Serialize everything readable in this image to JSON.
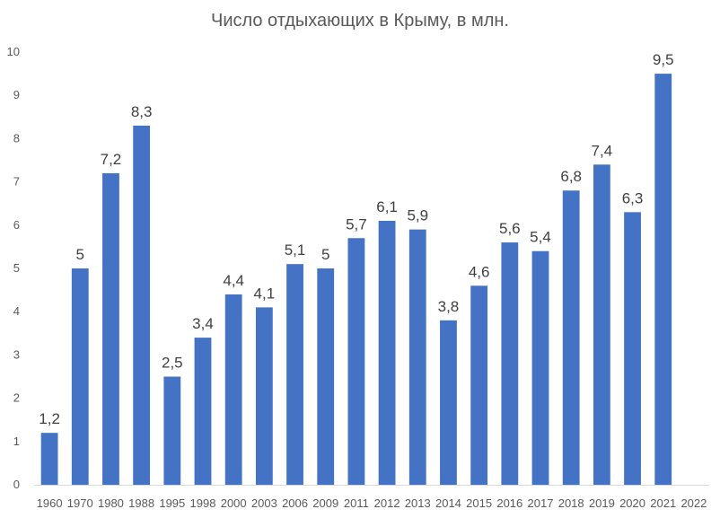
{
  "chart_data": {
    "type": "bar",
    "title": "Число отдыхающих в Крыму, в млн.",
    "xlabel": "",
    "ylabel": "",
    "ylim": [
      0,
      10
    ],
    "yticks": [
      "0",
      "1",
      "2",
      "3",
      "4",
      "5",
      "6",
      "7",
      "8",
      "9",
      "10"
    ],
    "categories": [
      "1960",
      "1970",
      "1980",
      "1988",
      "1995",
      "1998",
      "2000",
      "2003",
      "2006",
      "2009",
      "2011",
      "2012",
      "2013",
      "2014",
      "2015",
      "2016",
      "2017",
      "2018",
      "2019",
      "2020",
      "2021",
      "2022"
    ],
    "values": [
      1.2,
      5,
      7.2,
      8.3,
      2.5,
      3.4,
      4.4,
      4.1,
      5.1,
      5,
      5.7,
      6.1,
      5.9,
      3.8,
      4.6,
      5.6,
      5.4,
      6.8,
      7.4,
      6.3,
      9.5,
      null
    ],
    "value_labels": [
      "1,2",
      "5",
      "7,2",
      "8,3",
      "2,5",
      "3,4",
      "4,4",
      "4,1",
      "5,1",
      "5",
      "5,7",
      "6,1",
      "5,9",
      "3,8",
      "4,6",
      "5,6",
      "5,4",
      "6,8",
      "7,4",
      "6,3",
      "9,5",
      ""
    ],
    "bar_color": "#4472C4",
    "grid": false,
    "legend": "none"
  }
}
